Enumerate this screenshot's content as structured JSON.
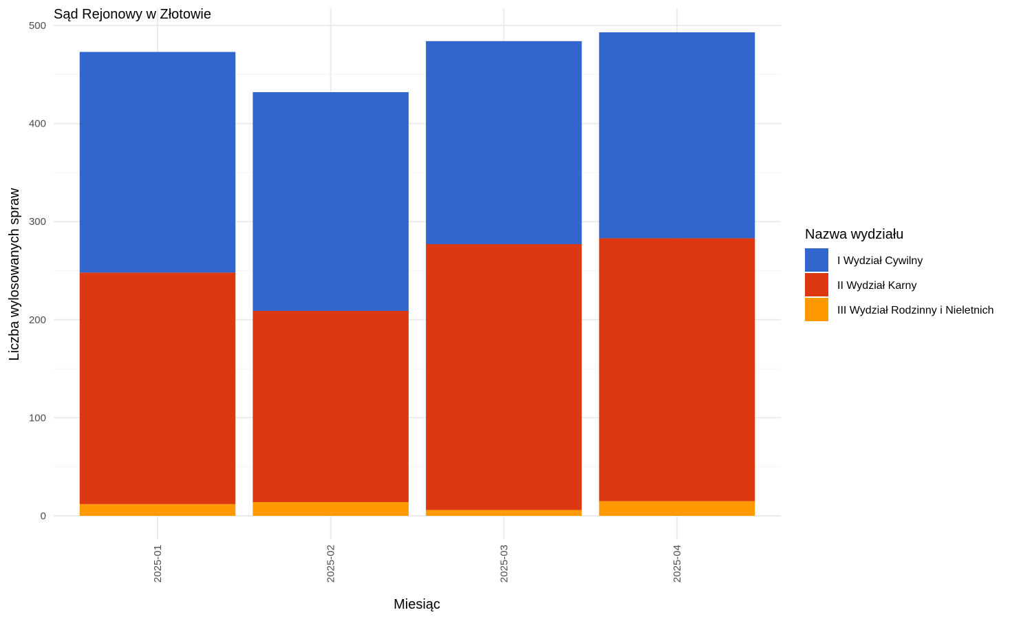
{
  "chart_data": {
    "type": "bar",
    "stacked": true,
    "title": "Sąd Rejonowy w Złotowie",
    "xlabel": "Miesiąc",
    "ylabel": "Liczba wylosowanych spraw",
    "categories": [
      "2025-01",
      "2025-02",
      "2025-03",
      "2025-04"
    ],
    "ylim": [
      0,
      500
    ],
    "yticks": [
      0,
      100,
      200,
      300,
      400,
      500
    ],
    "grid": true,
    "legend": {
      "title": "Nazwa wydziału",
      "position": "right"
    },
    "series": [
      {
        "name": "III Wydział Rodzinny i Nieletnich",
        "color": "#FF9900",
        "values": [
          12,
          14,
          6,
          15
        ]
      },
      {
        "name": "II Wydział Karny",
        "color": "#DC3912",
        "values": [
          236,
          195,
          271,
          268
        ]
      },
      {
        "name": "I Wydział Cywilny",
        "color": "#3366CC",
        "values": [
          225,
          223,
          207,
          210
        ]
      }
    ],
    "legend_order": [
      "I Wydział Cywilny",
      "II Wydział Karny",
      "III Wydział Rodzinny i Nieletnich"
    ]
  }
}
